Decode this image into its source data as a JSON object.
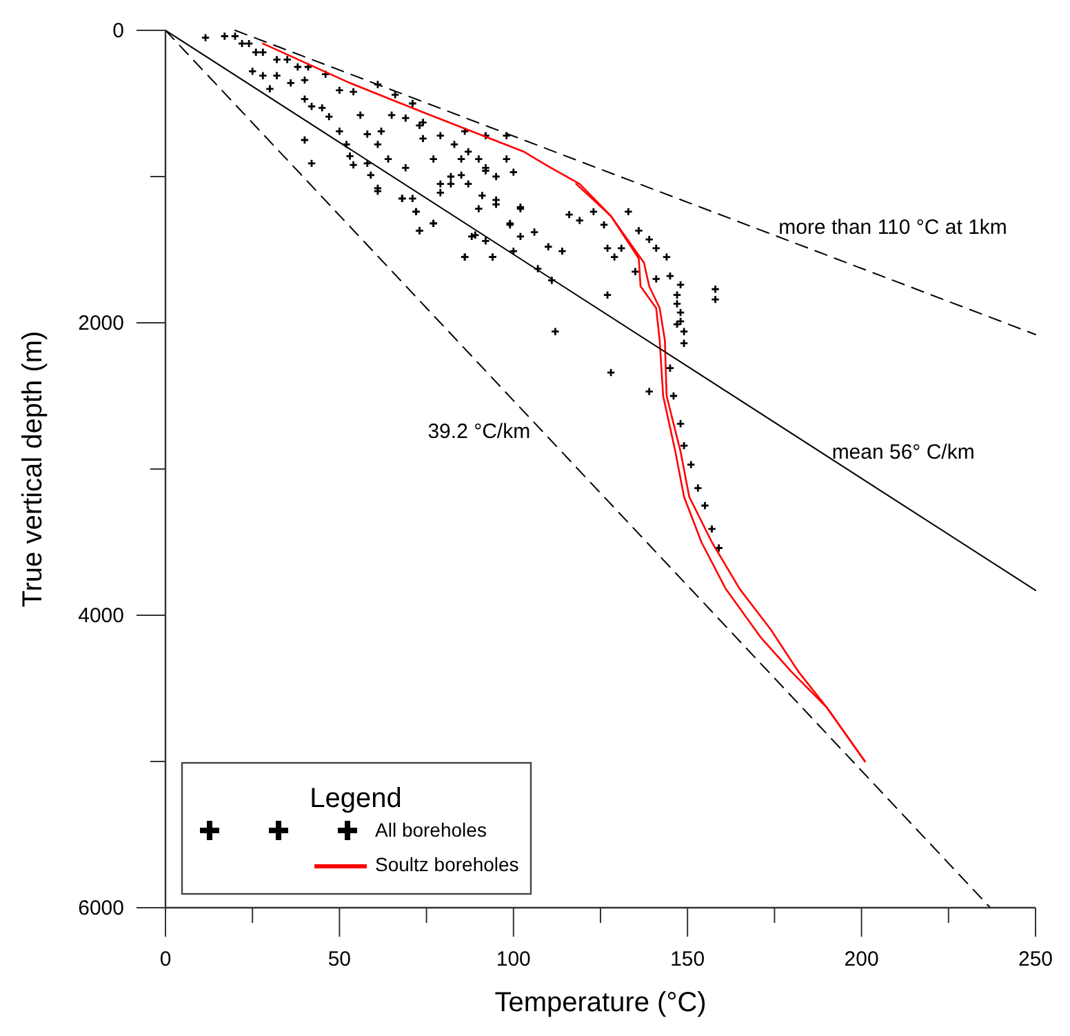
{
  "chart_data": {
    "type": "scatter",
    "xlabel": "Temperature (°C)",
    "ylabel": "True vertical depth (m)",
    "xlim": [
      0,
      250
    ],
    "ylim": [
      6000,
      0
    ],
    "xticks": [
      0,
      {
        "value": 25,
        "label": null
      },
      50,
      {
        "value": 75,
        "label": null
      },
      100,
      {
        "value": 125,
        "label": null
      },
      150,
      {
        "value": 175,
        "label": null
      },
      200,
      {
        "value": 225,
        "label": null
      },
      250
    ],
    "yticks": [
      0,
      {
        "value": 1000,
        "label": null
      },
      2000,
      {
        "value": 3000,
        "label": null
      },
      4000,
      {
        "value": 5000,
        "label": null
      },
      6000
    ],
    "grid": false,
    "legend": "bottom left",
    "legend_title": "Legend",
    "series": [
      {
        "name": "All boreholes",
        "marker": "cross",
        "color": "#000000",
        "x": [
          11.5,
          17,
          20,
          22,
          24,
          26,
          28,
          32,
          35,
          38,
          41,
          25,
          28,
          32,
          30,
          36,
          40,
          46,
          50,
          54,
          40,
          42,
          45,
          47,
          40,
          50,
          52,
          56,
          58,
          61,
          62,
          65,
          69,
          73,
          74,
          77,
          69,
          64,
          58,
          53,
          54,
          61,
          68,
          72,
          73,
          77,
          79,
          82,
          85,
          87,
          90,
          92,
          95,
          91,
          95,
          90,
          88,
          92,
          94,
          86,
          98,
          100,
          102,
          99,
          79,
          83,
          86,
          92,
          98,
          61,
          66,
          71,
          74,
          42,
          59,
          61,
          68,
          71,
          72,
          77,
          73,
          79,
          82,
          85,
          87,
          92,
          95,
          102,
          99,
          106,
          102,
          89,
          86,
          94,
          100,
          107,
          111,
          112,
          110,
          114,
          116,
          119,
          123,
          126,
          127,
          129,
          131,
          133,
          136,
          139,
          141,
          144,
          145,
          147,
          148,
          149,
          141,
          135,
          127,
          128,
          148,
          147,
          148,
          149,
          145,
          146,
          148,
          149,
          151,
          153,
          155,
          157,
          159,
          139,
          147,
          158,
          158
        ],
        "values": [
          50,
          40,
          40,
          90,
          90,
          150,
          150,
          200,
          200,
          250,
          250,
          280,
          310,
          310,
          400,
          360,
          340,
          300,
          410,
          420,
          470,
          520,
          530,
          590,
          750,
          690,
          780,
          580,
          710,
          780,
          690,
          580,
          600,
          650,
          740,
          880,
          940,
          880,
          910,
          860,
          920,
          1100,
          1150,
          1240,
          1370,
          1320,
          1050,
          1000,
          880,
          830,
          880,
          940,
          1000,
          1130,
          1190,
          1220,
          1410,
          1440,
          1550,
          1550,
          880,
          970,
          1220,
          1320,
          720,
          780,
          690,
          720,
          720,
          370,
          440,
          500,
          630,
          910,
          990,
          1080,
          1150,
          1150,
          1240,
          1320,
          1370,
          1110,
          1050,
          990,
          1050,
          960,
          1160,
          1210,
          1330,
          1380,
          1410,
          1400,
          1550,
          1550,
          1510,
          1630,
          1710,
          2060,
          1480,
          1510,
          1260,
          1300,
          1240,
          1330,
          1490,
          1550,
          1490,
          1240,
          1370,
          1430,
          1490,
          1550,
          1680,
          1810,
          1930,
          2060,
          1700,
          1650,
          1810,
          2340,
          1740,
          1870,
          1990,
          2140,
          2310,
          2500,
          2690,
          2840,
          2970,
          3130,
          3250,
          3410,
          3540,
          2470,
          2010,
          1770,
          1840
        ]
      },
      {
        "name": "Soultz boreholes",
        "type": "line",
        "marker": "none",
        "line_style": "solid",
        "color": "#ff0000",
        "x": [
          28,
          53,
          74,
          103,
          110,
          119,
          128,
          137.5,
          139,
          142,
          143.5,
          144,
          148,
          150.5,
          157,
          165,
          174,
          182,
          190,
          201
        ],
        "values": [
          90,
          360,
          560,
          830,
          930,
          1050,
          1270,
          1590,
          1750,
          1900,
          2120,
          2500,
          2880,
          3190,
          3500,
          3820,
          4100,
          4390,
          4630,
          5000
        ]
      },
      {
        "type": "line",
        "marker": "none",
        "line_style": "solid",
        "color": "#ff0000",
        "x": [
          118,
          128,
          136,
          136.5,
          141,
          142,
          143,
          146.5,
          149,
          154,
          161,
          171,
          180,
          190,
          201
        ],
        "values": [
          1050,
          1270,
          1560,
          1750,
          1900,
          2120,
          2500,
          2880,
          3190,
          3500,
          3820,
          4150,
          4390,
          4630,
          5000
        ]
      },
      {
        "type": "line",
        "marker": "none",
        "line_style": "dashed",
        "color": "#000000",
        "x": [
          20,
          250
        ],
        "values": [
          0,
          2080
        ]
      },
      {
        "type": "line",
        "marker": "none",
        "line_style": "solid",
        "color": "#000000",
        "x": [
          0,
          250
        ],
        "values": [
          0,
          3830
        ]
      },
      {
        "type": "line",
        "marker": "none",
        "line_style": "dashed",
        "color": "#000000",
        "x": [
          0,
          237
        ],
        "values": [
          0,
          6000
        ]
      }
    ],
    "annotations": [
      {
        "text": "more than 110 °C at 1km",
        "x": 209,
        "y": 1710
      },
      {
        "text": "mean 56° C/km",
        "x": 212,
        "y": 3250
      },
      {
        "text": "39.2 °C/km",
        "x": 108,
        "y": 2740
      }
    ]
  }
}
